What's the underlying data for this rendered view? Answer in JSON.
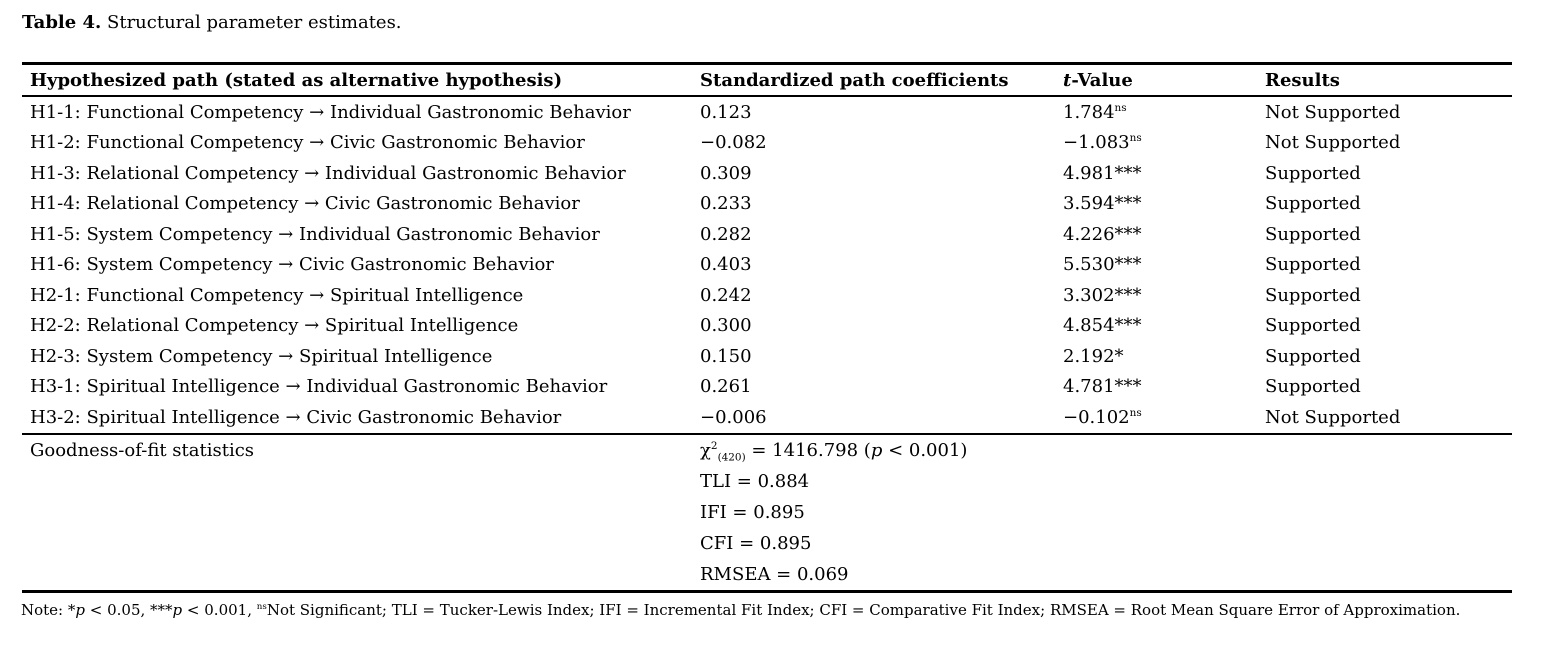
{
  "title": {
    "label": "Table 4.",
    "text": " Structural parameter estimates."
  },
  "table": {
    "headers": {
      "path": "Hypothesized path (stated as alternative hypothesis)",
      "coefficient": "Standardized path coefficients",
      "t_value": [
        {
          "t": "t",
          "i": true
        },
        {
          "t": "-Value"
        }
      ],
      "results": "Results"
    },
    "rows": [
      {
        "path": "H1-1: Functional Competency → Individual Gastronomic Behavior",
        "coefficient": "0.123",
        "t": "1.784",
        "t_sup": "ns",
        "result": "Not Supported"
      },
      {
        "path": "H1-2: Functional Competency → Civic Gastronomic Behavior",
        "coefficient": "−0.082",
        "t": "−1.083",
        "t_sup": "ns",
        "result": "Not Supported"
      },
      {
        "path": "H1-3: Relational Competency → Individual Gastronomic Behavior",
        "coefficient": "0.309",
        "t": "4.981***",
        "t_sup": "",
        "result": "Supported"
      },
      {
        "path": "H1-4: Relational Competency → Civic Gastronomic Behavior",
        "coefficient": "0.233",
        "t": "3.594***",
        "t_sup": "",
        "result": "Supported"
      },
      {
        "path": "H1-5: System Competency → Individual Gastronomic Behavior",
        "coefficient": "0.282",
        "t": "4.226***",
        "t_sup": "",
        "result": "Supported"
      },
      {
        "path": "H1-6: System Competency → Civic Gastronomic Behavior",
        "coefficient": "0.403",
        "t": "5.530***",
        "t_sup": "",
        "result": "Supported"
      },
      {
        "path": "H2-1: Functional Competency → Spiritual Intelligence",
        "coefficient": "0.242",
        "t": "3.302***",
        "t_sup": "",
        "result": "Supported"
      },
      {
        "path": "H2-2: Relational Competency → Spiritual Intelligence",
        "coefficient": "0.300",
        "t": "4.854***",
        "t_sup": "",
        "result": "Supported"
      },
      {
        "path": "H2-3: System Competency → Spiritual Intelligence",
        "coefficient": "0.150",
        "t": "2.192*",
        "t_sup": "",
        "result": "Supported"
      },
      {
        "path": "H3-1: Spiritual Intelligence → Individual Gastronomic Behavior",
        "coefficient": "0.261",
        "t": "4.781***",
        "t_sup": "",
        "result": "Supported"
      },
      {
        "path": "H3-2: Spiritual Intelligence → Civic Gastronomic Behavior",
        "coefficient": "−0.006",
        "t": "−0.102",
        "t_sup": "ns",
        "result": "Not Supported"
      }
    ],
    "goodness_of_fit": {
      "label": "Goodness-of-fit statistics",
      "chi_square": [
        {
          "t": "χ"
        },
        {
          "t": "2",
          "sup": true
        },
        {
          "t": "(420)",
          "sub": true
        },
        {
          "t": " = 1416.798 ("
        },
        {
          "t": "p",
          "i": true
        },
        {
          "t": " < 0.001)"
        }
      ],
      "lines": [
        "TLI = 0.884",
        "IFI = 0.895",
        "CFI = 0.895",
        "RMSEA = 0.069"
      ]
    }
  },
  "note": [
    {
      "t": "Note: *"
    },
    {
      "t": "p",
      "i": true
    },
    {
      "t": " < 0.05, ***"
    },
    {
      "t": "p",
      "i": true
    },
    {
      "t": " < 0.001, "
    },
    {
      "t": "ns",
      "sup": true
    },
    {
      "t": "Not Significant; TLI = Tucker-Lewis Index; IFI = Incremental Fit Index; CFI = Comparative Fit Index; RMSEA = Root Mean Square Error of Approximation."
    }
  ]
}
